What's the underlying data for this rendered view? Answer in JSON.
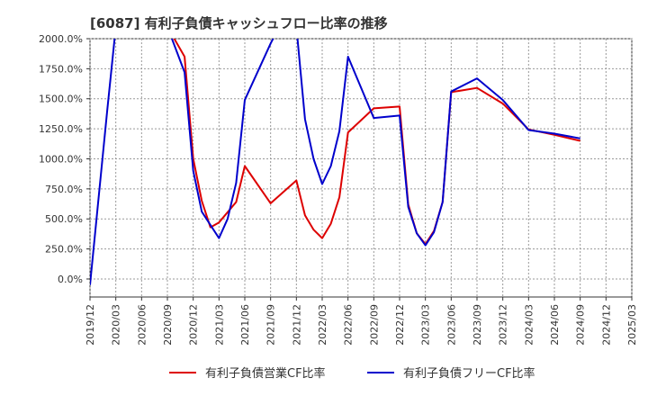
{
  "chart_data": {
    "type": "line",
    "title": "[6087]  有利子負債キャッシュフロー比率の推移",
    "xlabel": "",
    "ylabel": "",
    "ylim": [
      -150,
      2000
    ],
    "yticks": [
      0,
      250,
      500,
      750,
      1000,
      1250,
      1500,
      1750,
      2000
    ],
    "ytick_labels": [
      "0.0%",
      "250.0%",
      "500.0%",
      "750.0%",
      "1000.0%",
      "1250.0%",
      "1500.0%",
      "1750.0%",
      "2000.0%"
    ],
    "xlim": [
      "2019-12",
      "2025-03"
    ],
    "xtick_labels": [
      "2019/12",
      "2020/03",
      "2020/06",
      "2020/09",
      "2020/12",
      "2021/03",
      "2021/06",
      "2021/09",
      "2021/12",
      "2022/03",
      "2022/06",
      "2022/09",
      "2022/12",
      "2023/03",
      "2023/06",
      "2023/09",
      "2023/12",
      "2024/03",
      "2024/06",
      "2024/09",
      "2024/12",
      "2025/03"
    ],
    "grid": true,
    "legend_position": "bottom",
    "series": [
      {
        "name": "有利子負債営業CF比率",
        "color": "#dd0000",
        "points": [
          [
            "2020-09",
            2100
          ],
          [
            "2020-11",
            1850
          ],
          [
            "2020-12",
            1000
          ],
          [
            "2021-01",
            650
          ],
          [
            "2021-02",
            430
          ],
          [
            "2021-03",
            470
          ],
          [
            "2021-05",
            640
          ],
          [
            "2021-06",
            940
          ],
          [
            "2021-09",
            630
          ],
          [
            "2021-12",
            820
          ],
          [
            "2022-01",
            530
          ],
          [
            "2022-02",
            410
          ],
          [
            "2022-03",
            340
          ],
          [
            "2022-04",
            460
          ],
          [
            "2022-05",
            680
          ],
          [
            "2022-06",
            1220
          ],
          [
            "2022-09",
            1420
          ],
          [
            "2022-12",
            1435
          ],
          [
            "2023-01",
            620
          ],
          [
            "2023-02",
            380
          ],
          [
            "2023-03",
            290
          ],
          [
            "2023-04",
            400
          ],
          [
            "2023-05",
            640
          ],
          [
            "2023-06",
            1555
          ],
          [
            "2023-09",
            1590
          ],
          [
            "2023-12",
            1460
          ],
          [
            "2024-03",
            1245
          ],
          [
            "2024-06",
            1200
          ],
          [
            "2024-09",
            1150
          ]
        ]
      },
      {
        "name": "有利子負債フリーCF比率",
        "color": "#0000cc",
        "points": [
          [
            "2019-12",
            -50
          ],
          [
            "2020-02",
            1400
          ],
          [
            "2020-03",
            2100
          ],
          [
            "2020-09",
            2100
          ],
          [
            "2020-11",
            1720
          ],
          [
            "2020-12",
            900
          ],
          [
            "2021-01",
            560
          ],
          [
            "2021-03",
            340
          ],
          [
            "2021-04",
            500
          ],
          [
            "2021-05",
            800
          ],
          [
            "2021-06",
            1490
          ],
          [
            "2021-09",
            1960
          ],
          [
            "2021-10",
            2100
          ],
          [
            "2021-12",
            2100
          ],
          [
            "2022-01",
            1330
          ],
          [
            "2022-02",
            1000
          ],
          [
            "2022-03",
            790
          ],
          [
            "2022-04",
            940
          ],
          [
            "2022-05",
            1230
          ],
          [
            "2022-06",
            1850
          ],
          [
            "2022-09",
            1340
          ],
          [
            "2022-12",
            1360
          ],
          [
            "2023-01",
            600
          ],
          [
            "2023-02",
            380
          ],
          [
            "2023-03",
            280
          ],
          [
            "2023-04",
            390
          ],
          [
            "2023-05",
            640
          ],
          [
            "2023-06",
            1560
          ],
          [
            "2023-09",
            1670
          ],
          [
            "2023-12",
            1490
          ],
          [
            "2024-03",
            1240
          ],
          [
            "2024-06",
            1210
          ],
          [
            "2024-09",
            1170
          ]
        ]
      }
    ]
  }
}
